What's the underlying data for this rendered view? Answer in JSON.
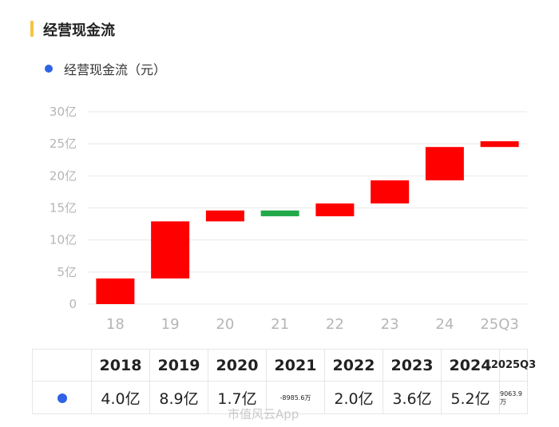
{
  "header": {
    "title": "经营现金流"
  },
  "legend": {
    "label": "经营现金流（元）"
  },
  "chart_data": {
    "type": "bar",
    "subtype": "waterfall",
    "categories": [
      "18",
      "19",
      "20",
      "21",
      "22",
      "23",
      "24",
      "25Q3"
    ],
    "values_yi": [
      4.0,
      8.9,
      1.7,
      -0.8986,
      2.0,
      3.6,
      5.2,
      0.9064
    ],
    "cumulative_yi": [
      4.0,
      12.9,
      14.6,
      13.7,
      15.7,
      19.3,
      24.5,
      25.4
    ],
    "ylim": [
      0,
      30
    ],
    "yticks": [
      "0",
      "5亿",
      "10亿",
      "15亿",
      "20亿",
      "25亿",
      "30亿"
    ],
    "colors": {
      "positive": "#ff0000",
      "negative": "#22a94a",
      "grid": "#e8e8e8"
    },
    "grid": true
  },
  "table": {
    "headers": [
      "2018",
      "2019",
      "2020",
      "2021",
      "2022",
      "2023",
      "2024",
      "2025Q3"
    ],
    "values": [
      "4.0亿",
      "8.9亿",
      "1.7亿",
      "-8985.6万",
      "2.0亿",
      "3.6亿",
      "5.2亿",
      "9063.9万"
    ]
  },
  "watermark": {
    "text": "市值风云App"
  },
  "colors": {
    "accent": "#f6c343",
    "series_dot": "#2f62e6"
  }
}
